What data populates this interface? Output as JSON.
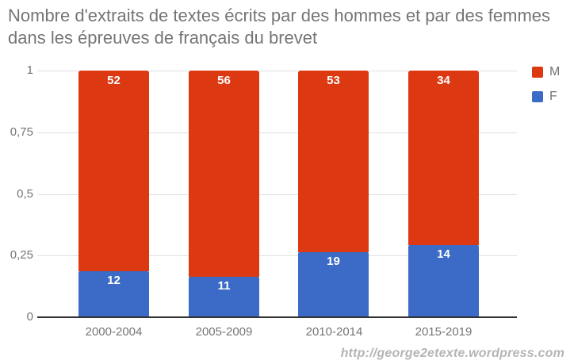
{
  "title": "Nombre d'extraits de textes écrits par des hommes et par des femmes dans les épreuves de français du brevet",
  "watermark": "http://george2etexte.wordpress.com",
  "legend": [
    {
      "label": "M",
      "color": "#dc3912"
    },
    {
      "label": "F",
      "color": "#3b6bc6"
    }
  ],
  "chart_data": {
    "type": "bar",
    "stacked": true,
    "normalized": true,
    "title": "Nombre d'extraits de textes écrits par des hommes et par des femmes dans les épreuves de français du brevet",
    "categories": [
      "2000-2004",
      "2005-2009",
      "2010-2014",
      "2015-2019"
    ],
    "series": [
      {
        "name": "M",
        "color": "#dc3912",
        "values": [
          52,
          56,
          53,
          34
        ]
      },
      {
        "name": "F",
        "color": "#3b6bc6",
        "values": [
          12,
          11,
          19,
          14
        ]
      }
    ],
    "stacked_fractions_F": [
      0.1875,
      0.1642,
      0.2639,
      0.2917
    ],
    "xlabel": "",
    "ylabel": "",
    "ylim": [
      0,
      1
    ],
    "grid": true,
    "legend_position": "right-top",
    "y_ticks": [
      {
        "value": 1,
        "label": "1"
      },
      {
        "value": 0.75,
        "label": "0,75"
      },
      {
        "value": 0.5,
        "label": "0,5"
      },
      {
        "value": 0.25,
        "label": "0,25"
      },
      {
        "value": 0,
        "label": "0"
      }
    ]
  }
}
